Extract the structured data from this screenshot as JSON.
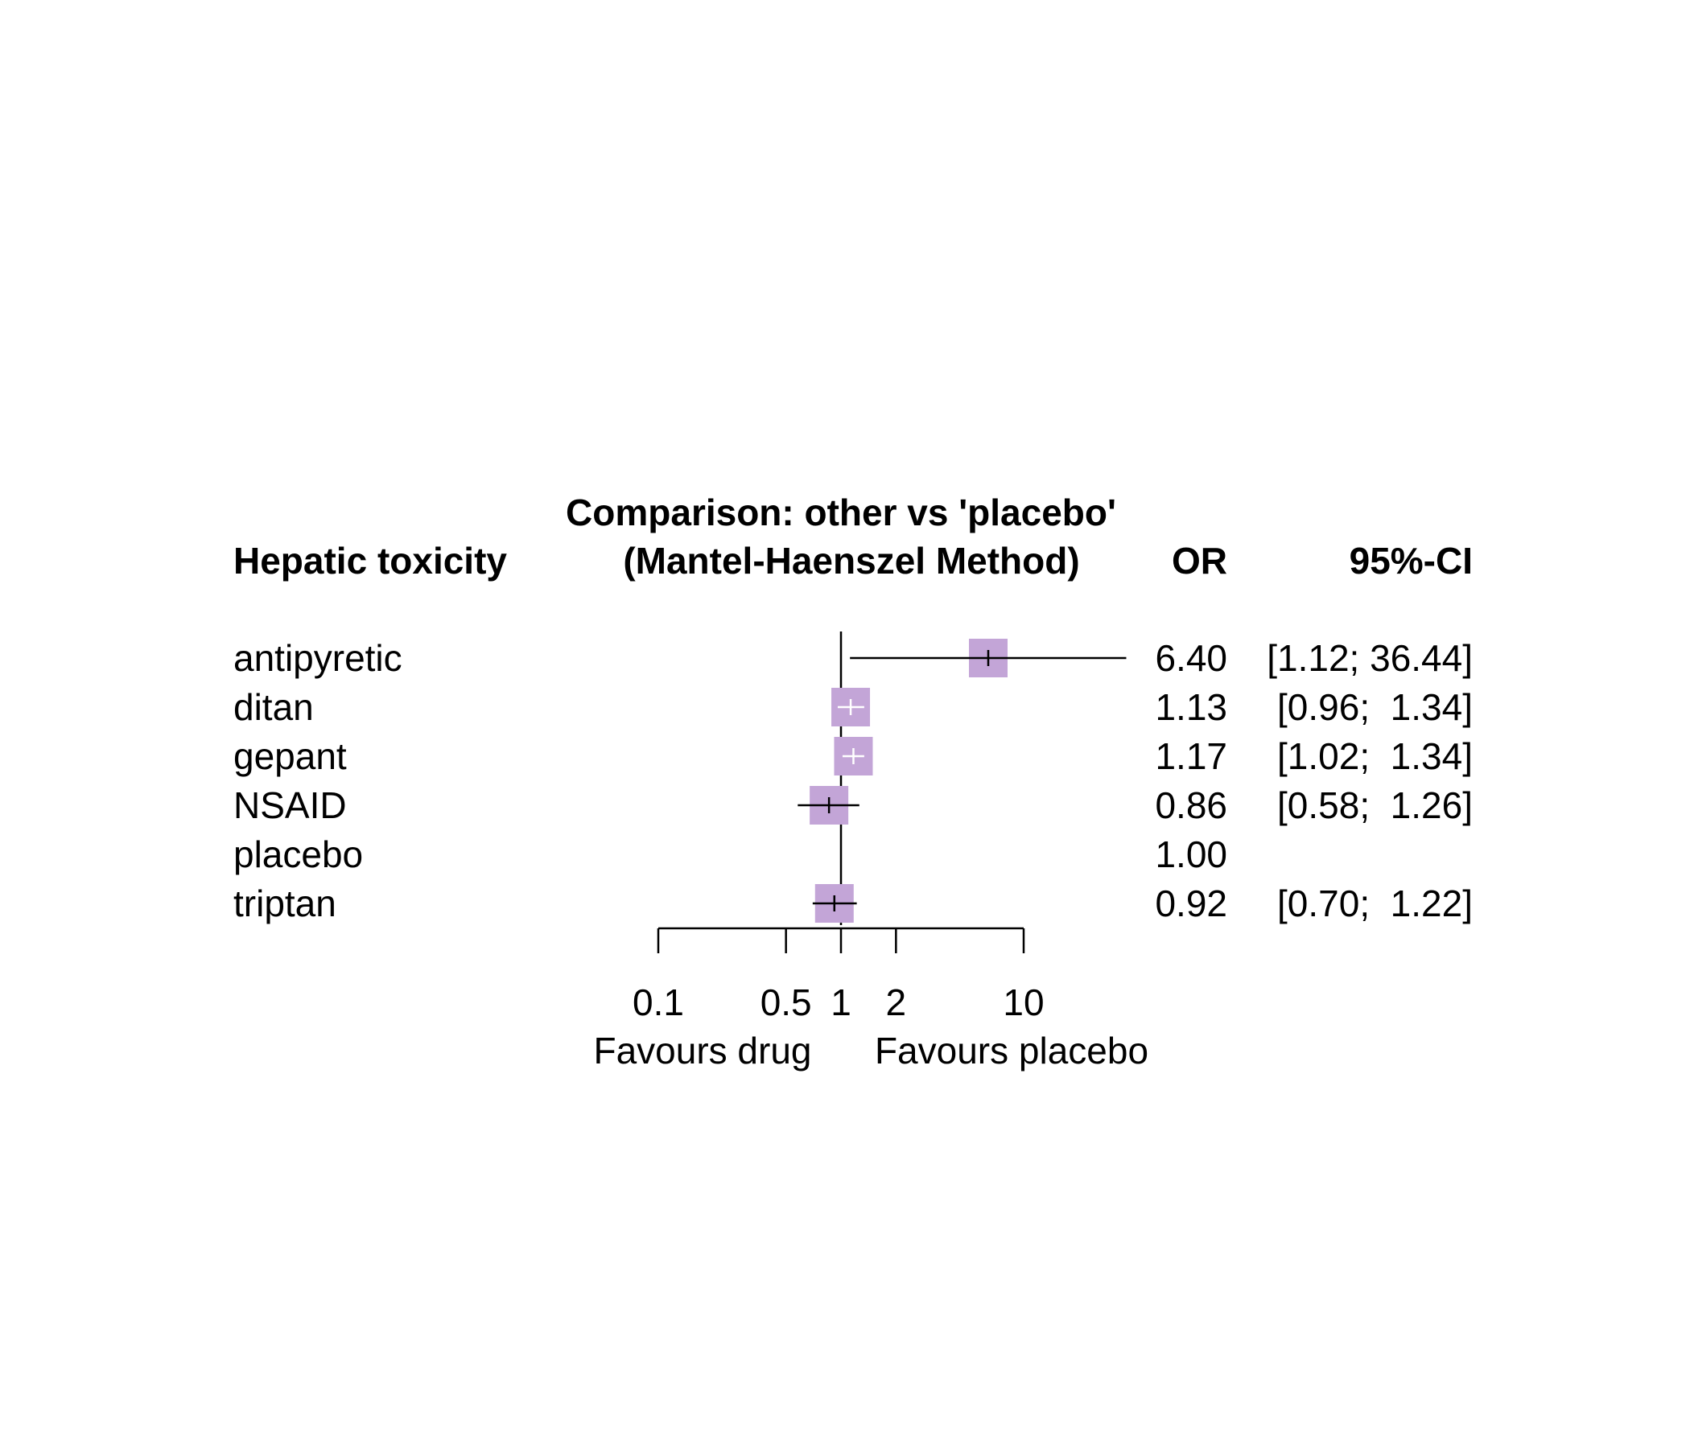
{
  "chart_data": {
    "type": "forest",
    "title": [
      "Comparison: other vs 'placebo'",
      "(Mantel-Haenszel Method)"
    ],
    "columns": {
      "label_header": "Hepatic toxicity",
      "or_header": "OR",
      "ci_header": "95%-CI"
    },
    "x_scale": "log",
    "xticks": [
      0.1,
      0.5,
      1,
      2,
      10
    ],
    "xtick_labels": [
      "0.1",
      "0.5",
      "1",
      "2",
      "10"
    ],
    "xlabel_left": "Favours drug",
    "xlabel_right": "Favours placebo",
    "reference_value": 1,
    "box_color": "#c3a5d7",
    "rows": [
      {
        "label": "antipyretic",
        "or": 6.4,
        "lower": 1.12,
        "upper": 36.44,
        "or_text": "6.40",
        "ci_text": "[1.12; 36.44]",
        "ci_color": "#000000"
      },
      {
        "label": "ditan",
        "or": 1.13,
        "lower": 0.96,
        "upper": 1.34,
        "or_text": "1.13",
        "ci_text": "[0.96;  1.34]",
        "ci_color": "#ffffff"
      },
      {
        "label": "gepant",
        "or": 1.17,
        "lower": 1.02,
        "upper": 1.34,
        "or_text": "1.17",
        "ci_text": "[1.02;  1.34]",
        "ci_color": "#ffffff"
      },
      {
        "label": "NSAID",
        "or": 0.86,
        "lower": 0.58,
        "upper": 1.26,
        "or_text": "0.86",
        "ci_text": "[0.58;  1.26]",
        "ci_color": "#000000"
      },
      {
        "label": "placebo",
        "or": 1.0,
        "lower": null,
        "upper": null,
        "or_text": "1.00",
        "ci_text": "",
        "ci_color": "#000000"
      },
      {
        "label": "triptan",
        "or": 0.92,
        "lower": 0.7,
        "upper": 1.22,
        "or_text": "0.92",
        "ci_text": "[0.70;  1.22]",
        "ci_color": "#000000"
      }
    ]
  }
}
